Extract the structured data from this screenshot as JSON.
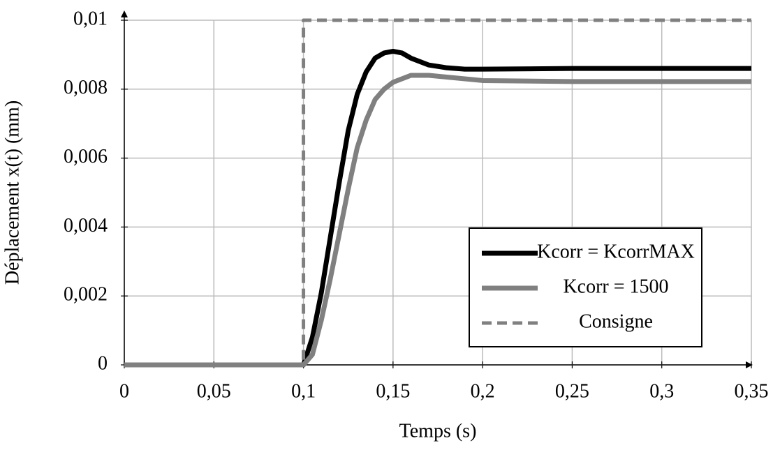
{
  "chart_data": {
    "type": "line",
    "x_label": "Temps (s)",
    "y_label": "Déplacement x(t) (mm)",
    "xlim": [
      0,
      0.35
    ],
    "ylim": [
      0,
      0.01
    ],
    "xticks": [
      0,
      {
        "value": 0.05,
        "label": "0,05"
      },
      {
        "value": 0.1,
        "label": "0,1"
      },
      {
        "value": 0.15,
        "label": "0,15"
      },
      {
        "value": 0.2,
        "label": "0,2"
      },
      {
        "value": 0.25,
        "label": "0,25"
      },
      {
        "value": 0.3,
        "label": "0,3"
      },
      {
        "value": 0.35,
        "label": "0,35"
      }
    ],
    "yticks": [
      0,
      {
        "value": 0.002,
        "label": "0,002"
      },
      {
        "value": 0.004,
        "label": "0,004"
      },
      {
        "value": 0.006,
        "label": "0,006"
      },
      {
        "value": 0.008,
        "label": "0,008"
      },
      {
        "value": 0.01,
        "label": "0,01"
      }
    ],
    "grid": true,
    "legend": "lower right",
    "series": [
      {
        "name": "Kcorr = KcorrMAX",
        "color": "#000000",
        "dash": false,
        "x": [
          0,
          0.1,
          0.105,
          0.11,
          0.115,
          0.12,
          0.125,
          0.13,
          0.135,
          0.14,
          0.145,
          0.15,
          0.155,
          0.16,
          0.17,
          0.18,
          0.19,
          0.2,
          0.25,
          0.3,
          0.35
        ],
        "values": [
          0,
          0,
          0.0008,
          0.0021,
          0.0037,
          0.0053,
          0.0068,
          0.00785,
          0.0085,
          0.0089,
          0.00905,
          0.0091,
          0.00905,
          0.0089,
          0.0087,
          0.00862,
          0.00858,
          0.00858,
          0.0086,
          0.0086,
          0.0086
        ]
      },
      {
        "name": "Kcorr = 1500",
        "color": "#808080",
        "dash": false,
        "x": [
          0,
          0.1,
          0.105,
          0.11,
          0.115,
          0.12,
          0.125,
          0.13,
          0.135,
          0.14,
          0.145,
          0.15,
          0.16,
          0.17,
          0.18,
          0.2,
          0.25,
          0.3,
          0.35
        ],
        "values": [
          0,
          0,
          0.0003,
          0.0013,
          0.0025,
          0.0038,
          0.0051,
          0.0063,
          0.0071,
          0.0077,
          0.008,
          0.0082,
          0.0084,
          0.0084,
          0.00835,
          0.00825,
          0.00822,
          0.00822,
          0.00822
        ]
      },
      {
        "name": "Consigne",
        "color": "#808080",
        "dash": true,
        "x": [
          0,
          0.1,
          0.1,
          0.35
        ],
        "values": [
          0,
          0,
          0.01,
          0.01
        ]
      }
    ]
  }
}
